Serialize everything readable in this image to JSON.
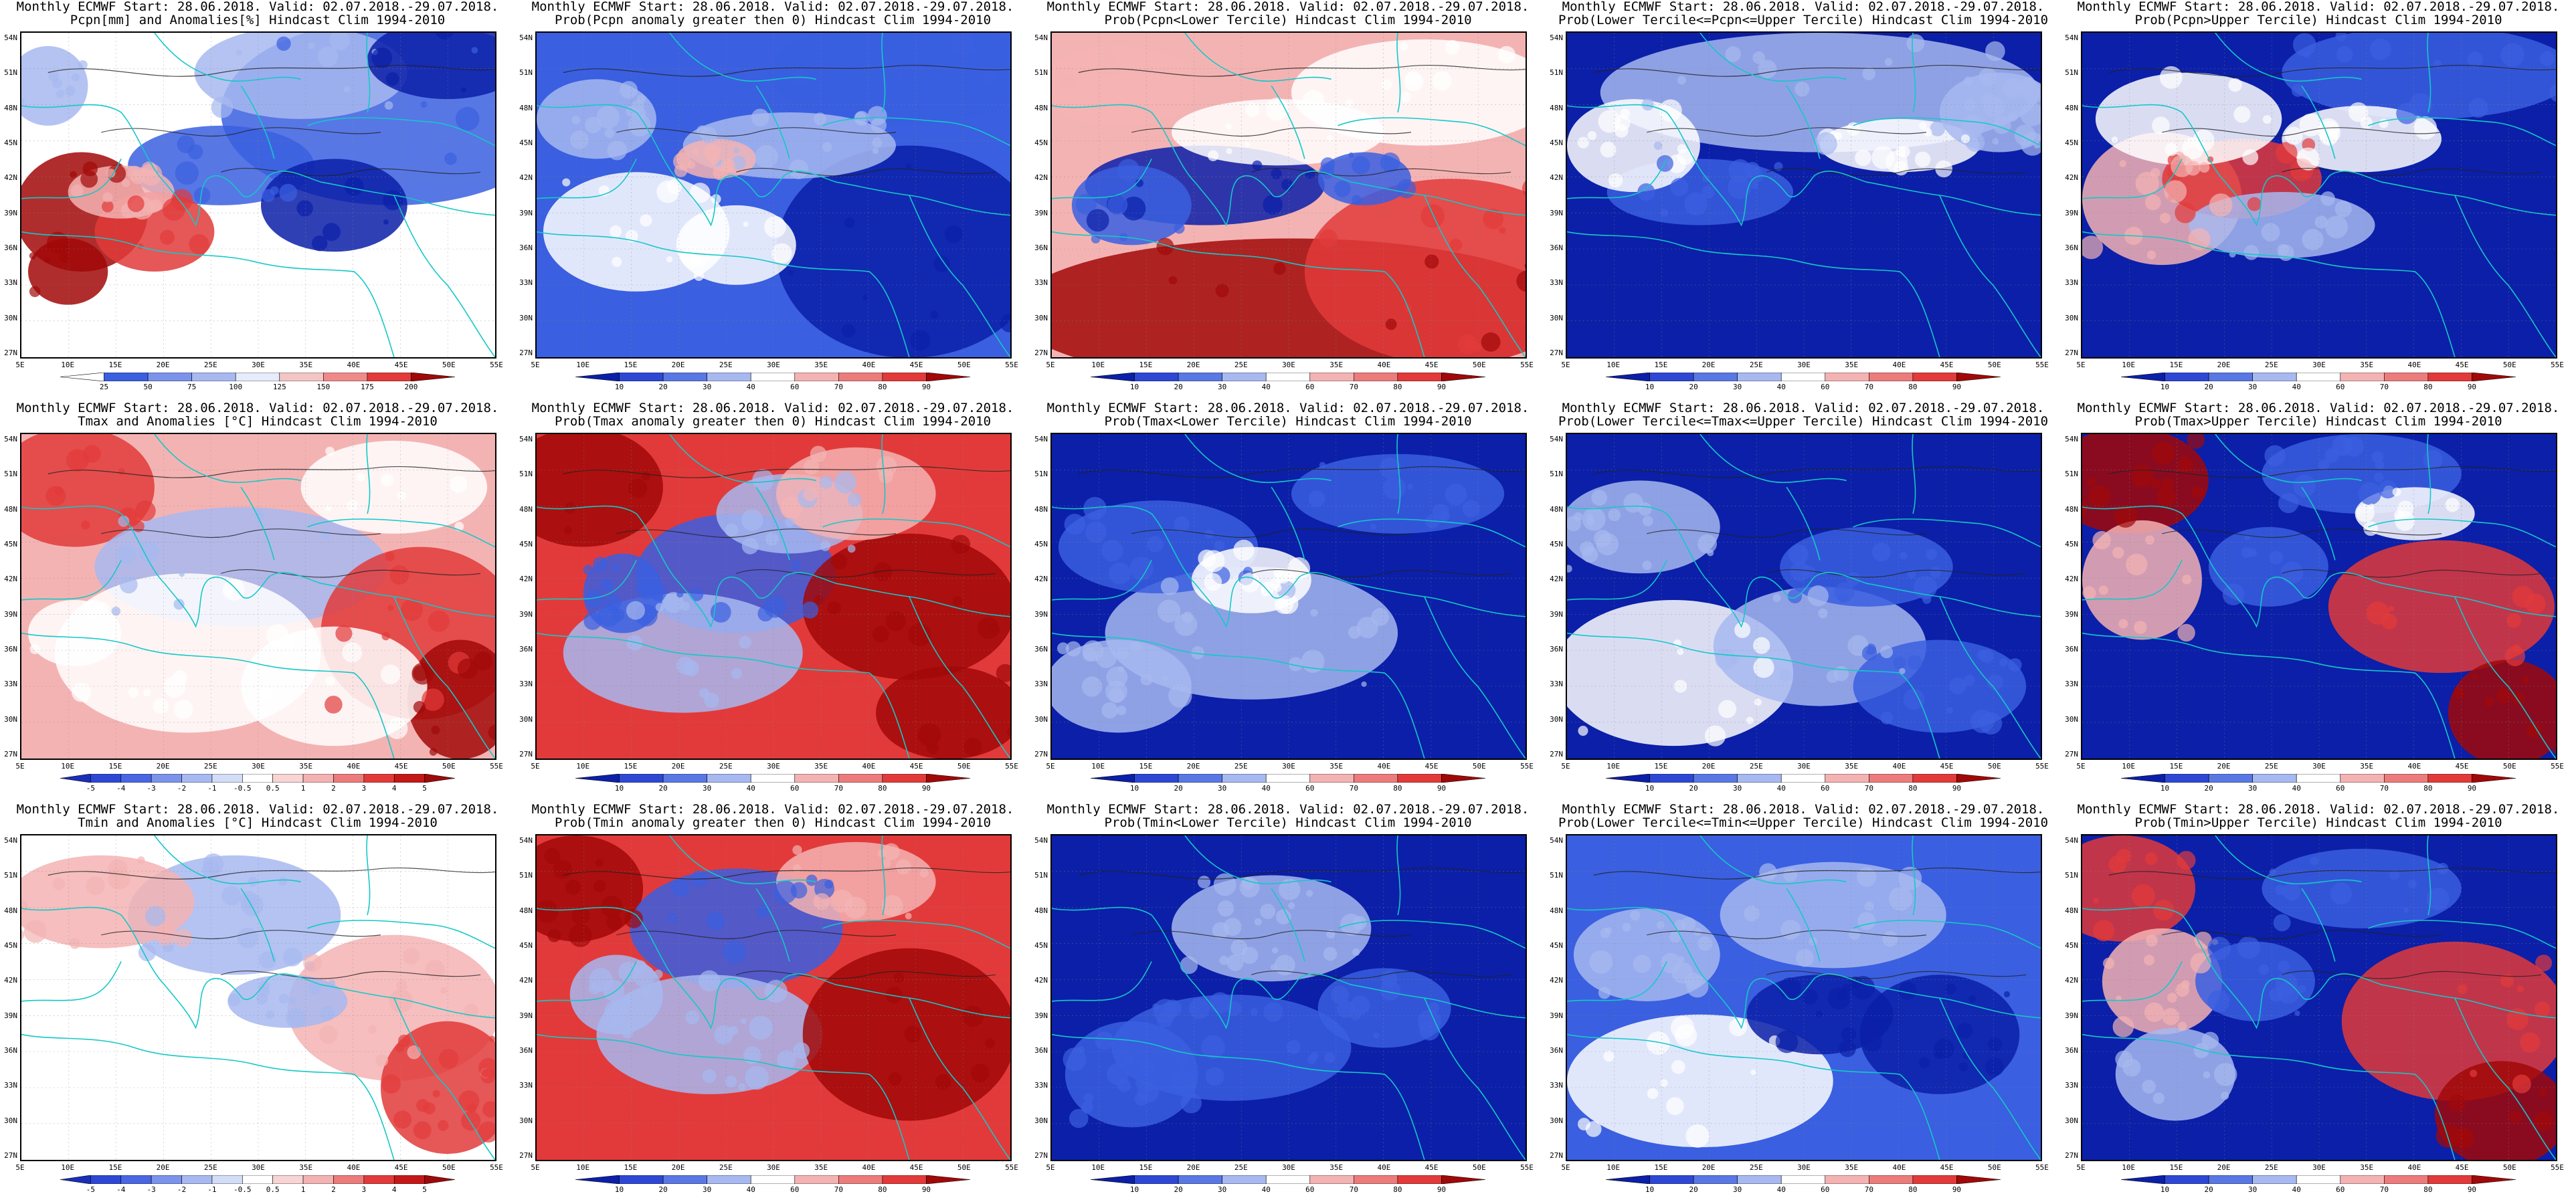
{
  "grid": {
    "lat_labels": [
      "54N",
      "51N",
      "48N",
      "45N",
      "42N",
      "39N",
      "36N",
      "33N",
      "30N",
      "27N"
    ],
    "lon_labels": [
      "5E",
      "10E",
      "15E",
      "20E",
      "25E",
      "30E",
      "35E",
      "40E",
      "45E",
      "50E",
      "55E"
    ]
  },
  "colors": {
    "deep_blue": "#0b1fa8",
    "blue": "#3a5fe0",
    "light_blue": "#a7b9f0",
    "white": "#ffffff",
    "light_red": "#f4b3b3",
    "red": "#e23a3a",
    "deep_red": "#a10808",
    "coast": "#14c8c8",
    "contour": "#222222"
  },
  "colorbars": {
    "precip_anom": [
      "25",
      "50",
      "75",
      "100",
      "125",
      "150",
      "175",
      "200"
    ],
    "temp_anom": [
      "-5",
      "-4",
      "-3",
      "-2",
      "-1",
      "-0.5",
      "0.5",
      "1",
      "2",
      "3",
      "4",
      "5"
    ],
    "prob": [
      "10",
      "20",
      "30",
      "40",
      "60",
      "70",
      "80",
      "90"
    ]
  },
  "panels": [
    {
      "title1": "Monthly ECMWF Start: 28.06.2018. Valid: 02.07.2018.-29.07.2018.",
      "title2": "Pcpn[mm] and Anomalies[%] Hindcast Clim 1994-2010",
      "pattern": "precip_anom",
      "cbar": "precip_anom"
    },
    {
      "title1": "Monthly ECMWF Start: 28.06.2018. Valid: 02.07.2018.-29.07.2018.",
      "title2": "Prob(Pcpn anomaly greater then 0) Hindcast Clim 1994-2010",
      "pattern": "precip_gt0",
      "cbar": "prob"
    },
    {
      "title1": "Monthly ECMWF Start: 28.06.2018. Valid: 02.07.2018.-29.07.2018.",
      "title2": "Prob(Pcpn<Lower Tercile) Hindcast Clim 1994-2010",
      "pattern": "precip_lower",
      "cbar": "prob"
    },
    {
      "title1": "Monthly ECMWF Start: 28.06.2018. Valid: 02.07.2018.-29.07.2018.",
      "title2": "Prob(Lower Tercile<=Pcpn<=Upper Tercile) Hindcast Clim 1994-2010",
      "pattern": "precip_mid",
      "cbar": "prob"
    },
    {
      "title1": "Monthly ECMWF Start: 28.06.2018. Valid: 02.07.2018.-29.07.2018.",
      "title2": "Prob(Pcpn>Upper Tercile) Hindcast Clim 1994-2010",
      "pattern": "precip_upper",
      "cbar": "prob"
    },
    {
      "title1": "Monthly ECMWF Start: 28.06.2018. Valid: 02.07.2018.-29.07.2018.",
      "title2": "Tmax and Anomalies [°C] Hindcast Clim 1994-2010",
      "pattern": "tmax_anom",
      "cbar": "temp_anom"
    },
    {
      "title1": "Monthly ECMWF Start: 28.06.2018. Valid: 02.07.2018.-29.07.2018.",
      "title2": "Prob(Tmax anomaly greater then 0) Hindcast Clim 1994-2010",
      "pattern": "tmax_gt0",
      "cbar": "prob"
    },
    {
      "title1": "Monthly ECMWF Start: 28.06.2018. Valid: 02.07.2018.-29.07.2018.",
      "title2": "Prob(Tmax<Lower Tercile) Hindcast Clim 1994-2010",
      "pattern": "tmax_lower",
      "cbar": "prob"
    },
    {
      "title1": "Monthly ECMWF Start: 28.06.2018. Valid: 02.07.2018.-29.07.2018.",
      "title2": "Prob(Lower Tercile<=Tmax<=Upper Tercile) Hindcast Clim 1994-2010",
      "pattern": "tmax_mid",
      "cbar": "prob"
    },
    {
      "title1": "Monthly ECMWF Start: 28.06.2018. Valid: 02.07.2018.-29.07.2018.",
      "title2": "Prob(Tmax>Upper Tercile) Hindcast Clim 1994-2010",
      "pattern": "tmax_upper",
      "cbar": "prob"
    },
    {
      "title1": "Monthly ECMWF Start: 28.06.2018. Valid: 02.07.2018.-29.07.2018.",
      "title2": "Tmin and Anomalies [°C] Hindcast Clim 1994-2010",
      "pattern": "tmin_anom",
      "cbar": "temp_anom"
    },
    {
      "title1": "Monthly ECMWF Start: 28.06.2018. Valid: 02.07.2018.-29.07.2018.",
      "title2": "Prob(Tmin anomaly greater then 0) Hindcast Clim 1994-2010",
      "pattern": "tmin_gt0",
      "cbar": "prob"
    },
    {
      "title1": "Monthly ECMWF Start: 28.06.2018. Valid: 02.07.2018.-29.07.2018.",
      "title2": "Prob(Tmin<Lower Tercile) Hindcast Clim 1994-2010",
      "pattern": "tmin_lower",
      "cbar": "prob"
    },
    {
      "title1": "Monthly ECMWF Start: 28.06.2018. Valid: 02.07.2018.-29.07.2018.",
      "title2": "Prob(Lower Tercile<=Tmin<=Upper Tercile) Hindcast Clim 1994-2010",
      "pattern": "tmin_mid",
      "cbar": "prob"
    },
    {
      "title1": "Monthly ECMWF Start: 28.06.2018. Valid: 02.07.2018.-29.07.2018.",
      "title2": "Prob(Tmin>Upper Tercile) Hindcast Clim 1994-2010",
      "pattern": "tmin_upper",
      "cbar": "prob"
    }
  ]
}
